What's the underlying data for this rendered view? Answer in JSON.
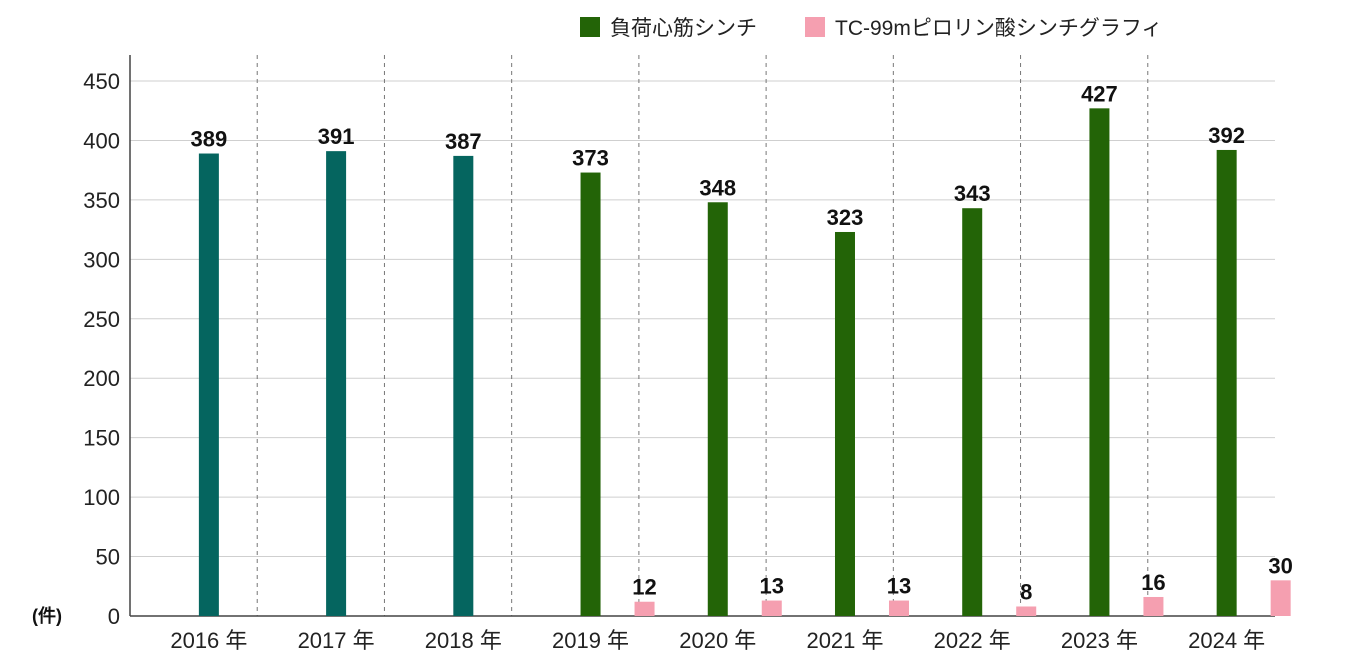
{
  "chart_data": {
    "type": "bar",
    "categories": [
      "2016 年",
      "2017 年",
      "2018 年",
      "2019 年",
      "2020 年",
      "2021 年",
      "2022 年",
      "2023 年",
      "2024 年"
    ],
    "series": [
      {
        "name": "負荷心筋シンチ",
        "values": [
          389,
          391,
          387,
          373,
          348,
          323,
          343,
          427,
          392
        ],
        "point_colors": [
          "#05655f",
          "#05655f",
          "#05655f",
          "#236407",
          "#236407",
          "#236407",
          "#236407",
          "#236407",
          "#236407"
        ]
      },
      {
        "name": "TC-99mピロリン酸シンチグラフィ",
        "values": [
          null,
          null,
          null,
          12,
          13,
          13,
          8,
          16,
          30
        ],
        "color": "#f59fb0"
      }
    ],
    "legend": [
      {
        "label": "負荷心筋シンチ",
        "color": "#236407"
      },
      {
        "label": "TC-99mピロリン酸シンチグラフィ",
        "color": "#f59fb0"
      }
    ],
    "ylim": [
      0,
      450
    ],
    "yticks": [
      "0",
      "50",
      "100",
      "150",
      "200",
      "250",
      "300",
      "350",
      "400",
      "450"
    ],
    "unit_label": "(件)",
    "grid": true,
    "legend_position": "top"
  }
}
